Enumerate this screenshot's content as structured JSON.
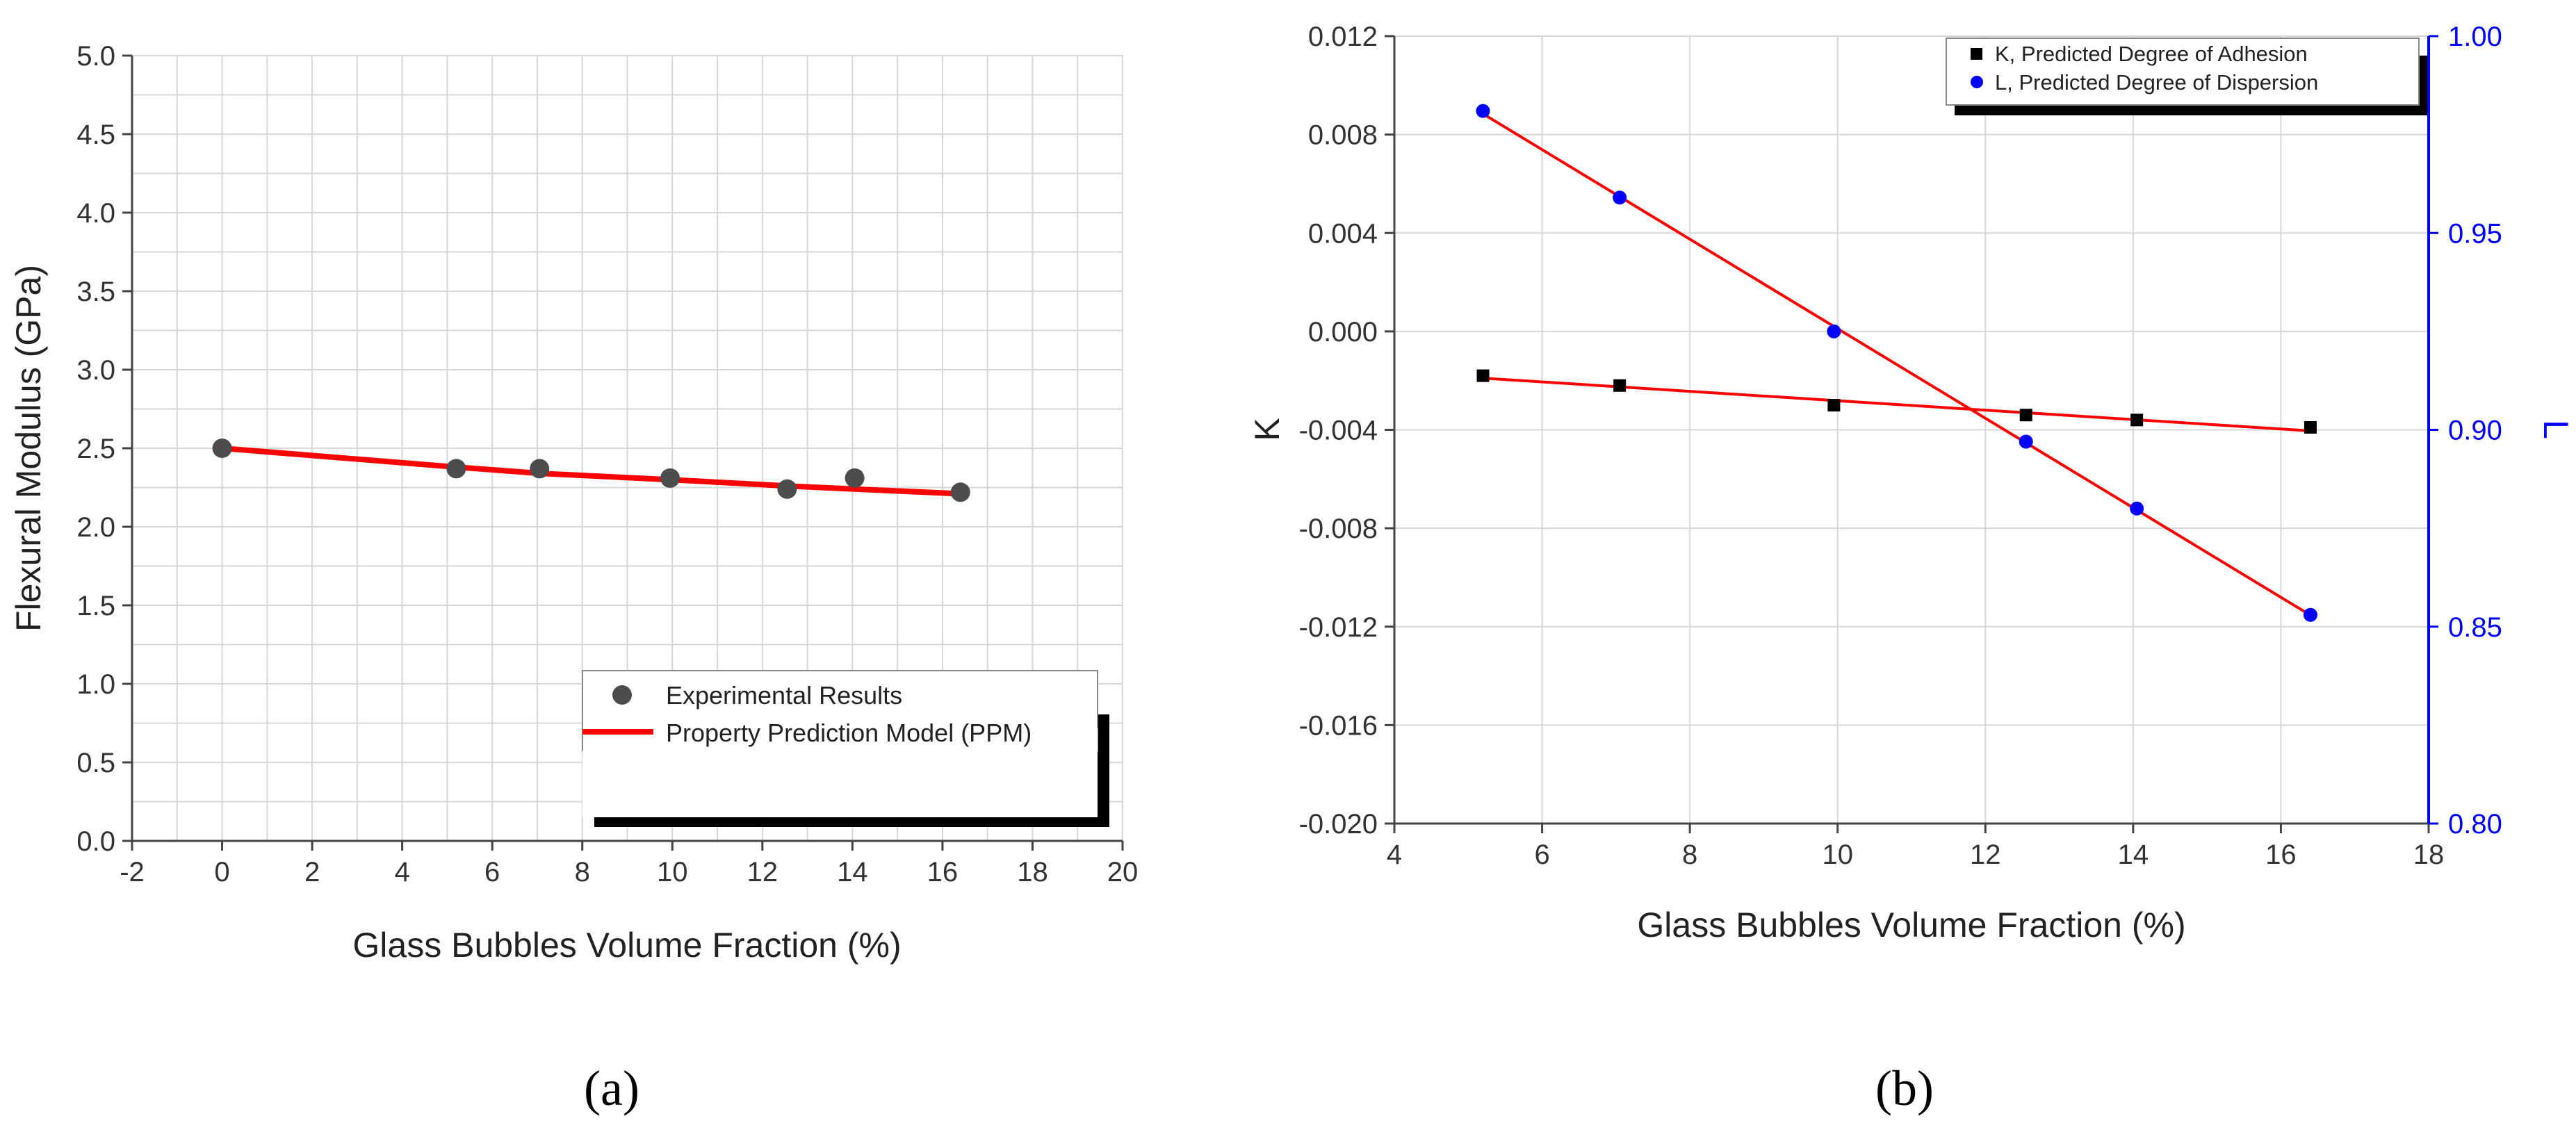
{
  "chart_data": [
    {
      "type": "scatter",
      "caption": "(a)",
      "xlabel": "Glass Bubbles Volume Fraction (%)",
      "ylabel": "Flexural Modulus (GPa)",
      "xlim": [
        -2,
        20
      ],
      "ylim": [
        0,
        5
      ],
      "xticks": [
        "-2",
        "0",
        "2",
        "4",
        "6",
        "8",
        "10",
        "12",
        "14",
        "16",
        "18",
        "20"
      ],
      "yticks": [
        "0.0",
        "0.5",
        "1.0",
        "1.5",
        "2.0",
        "2.5",
        "3.0",
        "3.5",
        "4.0",
        "4.5",
        "5.0"
      ],
      "grid": true,
      "legend_position": "bottom-right",
      "series": [
        {
          "name": "Experimental Results",
          "kind": "scatter",
          "color": "#4d4d4d",
          "x": [
            0,
            5.2,
            7.05,
            9.95,
            12.55,
            14.05,
            16.4
          ],
          "y": [
            2.5,
            2.37,
            2.37,
            2.31,
            2.24,
            2.31,
            2.22
          ]
        },
        {
          "name": "Property Prediction Model (PPM)",
          "kind": "line",
          "color": "#ff0000",
          "x": [
            0,
            5.2,
            7.05,
            9.95,
            12.55,
            14.05,
            16.4
          ],
          "y": [
            2.5,
            2.38,
            2.34,
            2.3,
            2.26,
            2.24,
            2.21
          ]
        }
      ]
    },
    {
      "type": "scatter",
      "caption": "(b)",
      "xlabel": "Glass Bubbles Volume Fraction (%)",
      "ylabel": "K",
      "y2label": "L",
      "xlim": [
        4,
        18
      ],
      "ylim": [
        -0.02,
        0.012
      ],
      "y2lim": [
        0.8,
        1.0
      ],
      "xticks": [
        "4",
        "6",
        "8",
        "10",
        "12",
        "14",
        "16",
        "18"
      ],
      "yticks": [
        "-0.020",
        "-0.016",
        "-0.012",
        "-0.008",
        "-0.004",
        "0.000",
        "0.004",
        "0.008",
        "0.012"
      ],
      "y2ticks": [
        "0.80",
        "0.85",
        "0.90",
        "0.95",
        "1.00"
      ],
      "grid": true,
      "legend_position": "top-right",
      "series": [
        {
          "name": "K, Predicted Degree of Adhesion",
          "kind": "scatter",
          "marker": "square",
          "axis": "left",
          "color": "#000000",
          "line_color": "#ff0000",
          "x": [
            5.2,
            7.05,
            9.95,
            12.55,
            14.05,
            16.4
          ],
          "y": [
            -0.0018,
            -0.0022,
            -0.003,
            -0.0034,
            -0.0036,
            -0.0039
          ]
        },
        {
          "name": "L, Predicted Degree of Dispersion",
          "kind": "scatter",
          "marker": "circle",
          "axis": "right",
          "color": "#0000ff",
          "line_color": "#ff0000",
          "x": [
            5.2,
            7.05,
            9.95,
            12.55,
            14.05,
            16.4
          ],
          "y": [
            0.981,
            0.959,
            0.925,
            0.897,
            0.88,
            0.853
          ]
        }
      ],
      "right_axis_color": "#0000ff"
    }
  ]
}
